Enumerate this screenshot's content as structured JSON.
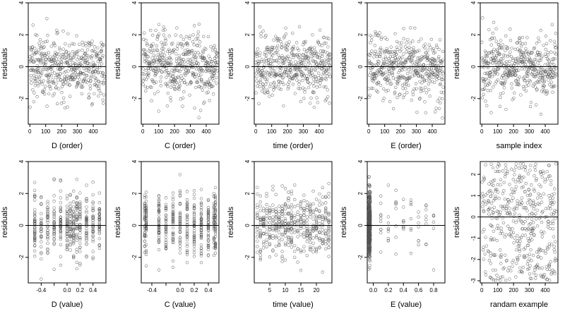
{
  "figure": {
    "panels_layout": "2 rows x 5 columns",
    "point_color": "#555555",
    "line_color": "#000000"
  },
  "chart_data": [
    {
      "type": "scatter",
      "xlabel": "D (order)",
      "ylabel": "residuals",
      "xlim": [
        -10,
        480
      ],
      "ylim": [
        -3.6,
        4.0
      ],
      "xticks": [
        0,
        100,
        200,
        300,
        400
      ],
      "xtick_labels": [
        "0",
        "100",
        "200",
        "300",
        "400"
      ],
      "yticks": [
        -2,
        0,
        2,
        4
      ],
      "ytick_labels": [
        "-2",
        "0",
        "2",
        "4"
      ],
      "reference_line_y": 0,
      "n_points": 470,
      "distribution": {
        "kind": "residuals_vs_index",
        "x_range": [
          0,
          470
        ],
        "y_spread": 1.0,
        "y_min": -3.5,
        "y_max": 3.8
      }
    },
    {
      "type": "scatter",
      "xlabel": "C (order)",
      "ylabel": "residuals",
      "xlim": [
        -10,
        480
      ],
      "ylim": [
        -3.6,
        4.0
      ],
      "xticks": [
        0,
        100,
        200,
        300,
        400
      ],
      "xtick_labels": [
        "0",
        "100",
        "200",
        "300",
        "400"
      ],
      "yticks": [
        -2,
        0,
        2,
        4
      ],
      "ytick_labels": [
        "-2",
        "0",
        "2",
        "4"
      ],
      "reference_line_y": 0,
      "n_points": 470,
      "distribution": {
        "kind": "residuals_vs_index",
        "x_range": [
          0,
          470
        ],
        "y_spread": 1.0,
        "y_min": -3.5,
        "y_max": 3.8
      }
    },
    {
      "type": "scatter",
      "xlabel": "time (order)",
      "ylabel": "residuals",
      "xlim": [
        -10,
        480
      ],
      "ylim": [
        -3.6,
        4.0
      ],
      "xticks": [
        0,
        100,
        200,
        300,
        400
      ],
      "xtick_labels": [
        "0",
        "100",
        "200",
        "300",
        "400"
      ],
      "yticks": [
        -2,
        0,
        2,
        4
      ],
      "ytick_labels": [
        "-2",
        "0",
        "2",
        "4"
      ],
      "reference_line_y": 0,
      "n_points": 470,
      "distribution": {
        "kind": "residuals_vs_index",
        "x_range": [
          0,
          470
        ],
        "y_spread": 1.0,
        "y_min": -3.5,
        "y_max": 3.8
      }
    },
    {
      "type": "scatter",
      "xlabel": "E (order)",
      "ylabel": "residuals",
      "xlim": [
        -10,
        480
      ],
      "ylim": [
        -3.6,
        4.0
      ],
      "xticks": [
        0,
        100,
        200,
        300,
        400
      ],
      "xtick_labels": [
        "0",
        "100",
        "200",
        "300",
        "400"
      ],
      "yticks": [
        -2,
        0,
        2,
        4
      ],
      "ytick_labels": [
        "-2",
        "0",
        "2",
        "4"
      ],
      "reference_line_y": 0,
      "n_points": 470,
      "distribution": {
        "kind": "residuals_vs_index",
        "x_range": [
          0,
          470
        ],
        "y_spread": 1.0,
        "y_min": -3.5,
        "y_max": 3.8
      }
    },
    {
      "type": "scatter",
      "xlabel": "sample index",
      "ylabel": "residuals",
      "xlim": [
        -10,
        480
      ],
      "ylim": [
        -3.6,
        4.0
      ],
      "xticks": [
        0,
        100,
        200,
        300,
        400
      ],
      "xtick_labels": [
        "0",
        "100",
        "200",
        "300",
        "400"
      ],
      "yticks": [
        -2,
        0,
        2,
        4
      ],
      "ytick_labels": [
        "-2",
        "0",
        "2",
        "4"
      ],
      "reference_line_y": 0,
      "n_points": 470,
      "distribution": {
        "kind": "residuals_vs_index",
        "x_range": [
          0,
          470
        ],
        "y_spread": 1.0,
        "y_min": -3.5,
        "y_max": 3.8
      }
    },
    {
      "type": "scatter",
      "xlabel": "D (value)",
      "ylabel": "residuals",
      "xlim": [
        -0.6,
        0.6
      ],
      "ylim": [
        -3.6,
        4.0
      ],
      "xticks": [
        -0.4,
        -0.2,
        0.0,
        0.2,
        0.4
      ],
      "xtick_labels": [
        "-0.4",
        "",
        "0.0",
        "0.2",
        "0.4"
      ],
      "yticks": [
        -2,
        0,
        2,
        4
      ],
      "ytick_labels": [
        "-2",
        "0",
        "2",
        "4"
      ],
      "reference_line_y": 0,
      "n_points": 470,
      "distribution": {
        "kind": "discrete_columns",
        "x_values": [
          -0.5,
          -0.4,
          -0.3,
          -0.2,
          -0.1,
          0.0,
          0.05,
          0.1,
          0.15,
          0.2,
          0.3,
          0.4,
          0.5
        ],
        "y_spread": 1.0,
        "y_min": -3.5,
        "y_max": 3.8
      }
    },
    {
      "type": "scatter",
      "xlabel": "C (value)",
      "ylabel": "residuals",
      "xlim": [
        -0.55,
        0.55
      ],
      "ylim": [
        -3.6,
        4.0
      ],
      "xticks": [
        -0.4,
        -0.2,
        0.0,
        0.2,
        0.4
      ],
      "xtick_labels": [
        "-0.4",
        "",
        "0.0",
        "0.2",
        "0.4"
      ],
      "yticks": [
        -2,
        0,
        2,
        4
      ],
      "ytick_labels": [
        "-2",
        "0",
        "2",
        "4"
      ],
      "reference_line_y": 0,
      "n_points": 470,
      "distribution": {
        "kind": "discrete_columns",
        "x_values": [
          -0.5,
          -0.48,
          -0.3,
          -0.2,
          -0.1,
          0.0,
          0.1,
          0.2,
          0.3,
          0.4,
          0.48,
          0.5
        ],
        "y_spread": 1.0,
        "y_min": -3.5,
        "y_max": 3.8
      }
    },
    {
      "type": "scatter",
      "xlabel": "time (value)",
      "ylabel": "residuals",
      "xlim": [
        0,
        25
      ],
      "ylim": [
        -3.6,
        4.0
      ],
      "xticks": [
        5,
        10,
        15,
        20
      ],
      "xtick_labels": [
        "5",
        "10",
        "15",
        "20"
      ],
      "yticks": [
        -2,
        0,
        2,
        4
      ],
      "ytick_labels": [
        "-2",
        "0",
        "2",
        "4"
      ],
      "reference_line_y": 0,
      "n_points": 470,
      "distribution": {
        "kind": "discrete_columns",
        "x_values": [
          1,
          2,
          3,
          4,
          5,
          6,
          7,
          8,
          9,
          10,
          11,
          12,
          13,
          14,
          15,
          16,
          17,
          18,
          19,
          20,
          21,
          22,
          23,
          24
        ],
        "y_spread": 1.0,
        "y_min": -3.5,
        "y_max": 3.8
      }
    },
    {
      "type": "scatter",
      "xlabel": "E (value)",
      "ylabel": "residuals",
      "xlim": [
        -0.08,
        0.95
      ],
      "ylim": [
        -3.6,
        4.0
      ],
      "xticks": [
        0.0,
        0.2,
        0.4,
        0.6,
        0.8
      ],
      "xtick_labels": [
        "0.0",
        "0.2",
        "0.4",
        "0.6",
        "0.8"
      ],
      "yticks": [
        -2,
        0,
        2,
        4
      ],
      "ytick_labels": [
        "-2",
        "0",
        "2",
        "4"
      ],
      "reference_line_y": 0,
      "n_points": 470,
      "distribution": {
        "kind": "concentrated_near_zero",
        "dense_x": -0.05,
        "sparse_x_values": [
          0.1,
          0.2,
          0.3,
          0.4,
          0.5,
          0.6,
          0.7,
          0.8
        ],
        "y_spread": 1.0,
        "y_min": -3.5,
        "y_max": 3.8
      }
    },
    {
      "type": "scatter",
      "xlabel": "randam example",
      "ylabel": "residuals",
      "xlim": [
        -10,
        480
      ],
      "ylim": [
        -3.1,
        2.6
      ],
      "xticks": [
        0,
        100,
        200,
        300,
        400
      ],
      "xtick_labels": [
        "0",
        "100",
        "200",
        "300",
        "400"
      ],
      "yticks": [
        -3,
        -2,
        -1,
        0,
        1,
        2
      ],
      "ytick_labels": [
        "-3",
        "-2",
        "-1",
        "0",
        "1",
        "2"
      ],
      "reference_line_y": 0,
      "n_points": 470,
      "distribution": {
        "kind": "uniform_random",
        "x_range": [
          0,
          470
        ],
        "y_min": -3.0,
        "y_max": 2.5
      }
    }
  ]
}
